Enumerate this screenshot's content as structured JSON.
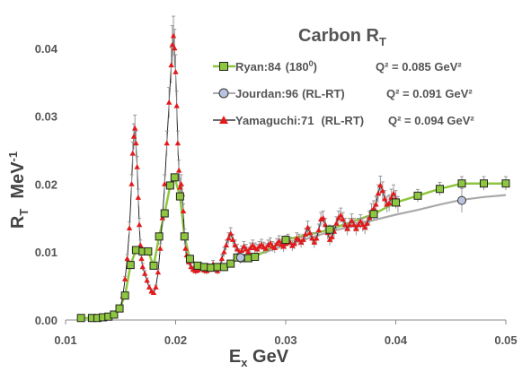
{
  "chart_data": {
    "type": "line",
    "title": "Carbon R",
    "title_sub": "T",
    "xlabel": "E",
    "xlabel_sub": "x",
    "xlabel_unit": "GeV",
    "ylabel": "R",
    "ylabel_sub": "T",
    "ylabel_unit": "MeV",
    "ylabel_sup": "-1",
    "xlim": [
      0.01,
      0.05
    ],
    "ylim": [
      0,
      0.045
    ],
    "x_ticks": [
      "0.01",
      "0.02",
      "0.03",
      "0.04",
      "0.05"
    ],
    "y_ticks": [
      "0.00",
      "0.01",
      "0.02",
      "0.03",
      "0.04"
    ],
    "grid": false,
    "legend_position": "top-right",
    "colors": {
      "ryan_fill": "#8ec63f",
      "ryan_line": "#8ec63f",
      "jourdan_fill": "#b8c4e0",
      "jourdan_line": "#aaaaaa",
      "yamaguchi_fill": "#e31a1c",
      "yamaguchi_line": "#111111",
      "errorbar": "#999999"
    },
    "series": [
      {
        "name": "Ryan:84",
        "name_note": "(180",
        "name_note_sup": "0",
        "name_note_end": ")",
        "q2": "Q² = 0.085 GeV²",
        "marker": "square",
        "points": [
          [
            0.0114,
            0.0003
          ],
          [
            0.0124,
            0.0003
          ],
          [
            0.0129,
            0.0003
          ],
          [
            0.0134,
            0.0004
          ],
          [
            0.0139,
            0.0005
          ],
          [
            0.0144,
            0.0008
          ],
          [
            0.0149,
            0.0017
          ],
          [
            0.0154,
            0.0036
          ],
          [
            0.0159,
            0.0081
          ],
          [
            0.0164,
            0.0103
          ],
          [
            0.017,
            0.0101
          ],
          [
            0.0175,
            0.0101
          ],
          [
            0.018,
            0.008
          ],
          [
            0.0185,
            0.0123
          ],
          [
            0.019,
            0.0157
          ],
          [
            0.0195,
            0.0198
          ],
          [
            0.0199,
            0.021
          ],
          [
            0.0204,
            0.0182
          ],
          [
            0.0208,
            0.0123
          ],
          [
            0.0213,
            0.009
          ],
          [
            0.022,
            0.008
          ],
          [
            0.0226,
            0.0078
          ],
          [
            0.0232,
            0.0077
          ],
          [
            0.0238,
            0.0078
          ],
          [
            0.0244,
            0.0078
          ],
          [
            0.025,
            0.0083
          ],
          [
            0.0256,
            0.0092
          ],
          [
            0.0261,
            0.0091
          ],
          [
            0.0266,
            0.0091
          ],
          [
            0.0272,
            0.0093
          ],
          [
            0.03,
            0.0118
          ],
          [
            0.034,
            0.0133
          ],
          [
            0.038,
            0.0156
          ],
          [
            0.04,
            0.0173
          ],
          [
            0.042,
            0.0183
          ],
          [
            0.044,
            0.0193
          ],
          [
            0.046,
            0.0201
          ],
          [
            0.048,
            0.0201
          ],
          [
            0.05,
            0.0201
          ]
        ]
      },
      {
        "name": "Jourdan:96",
        "name_note": "(RL-RT)",
        "q2": "Q² = 0.091 GeV²",
        "marker": "circle",
        "points": [
          [
            0.0259,
            0.0092
          ],
          [
            0.046,
            0.0176
          ]
        ],
        "curve": [
          [
            0.0255,
            0.009
          ],
          [
            0.028,
            0.0099
          ],
          [
            0.03,
            0.011
          ],
          [
            0.032,
            0.012
          ],
          [
            0.034,
            0.013
          ],
          [
            0.036,
            0.0138
          ],
          [
            0.038,
            0.0147
          ],
          [
            0.04,
            0.0155
          ],
          [
            0.042,
            0.0162
          ],
          [
            0.044,
            0.017
          ],
          [
            0.046,
            0.0177
          ],
          [
            0.048,
            0.0181
          ],
          [
            0.05,
            0.0184
          ]
        ]
      },
      {
        "name": "Yamaguchi:71",
        "name_note": "(RL-RT)",
        "q2": "Q² = 0.094 GeV²",
        "marker": "triangle",
        "points": [
          [
            0.015,
            0.0015
          ],
          [
            0.0152,
            0.0035
          ],
          [
            0.0154,
            0.006
          ],
          [
            0.0156,
            0.009
          ],
          [
            0.0158,
            0.0135
          ],
          [
            0.016,
            0.02
          ],
          [
            0.0161,
            0.0245
          ],
          [
            0.0162,
            0.027
          ],
          [
            0.0163,
            0.0282
          ],
          [
            0.0164,
            0.026
          ],
          [
            0.0165,
            0.0225
          ],
          [
            0.0166,
            0.018
          ],
          [
            0.0167,
            0.014
          ],
          [
            0.0168,
            0.011
          ],
          [
            0.0169,
            0.009
          ],
          [
            0.017,
            0.0078
          ],
          [
            0.0172,
            0.0068
          ],
          [
            0.0174,
            0.0058
          ],
          [
            0.0176,
            0.0048
          ],
          [
            0.0178,
            0.0042
          ],
          [
            0.018,
            0.004
          ],
          [
            0.0182,
            0.0048
          ],
          [
            0.0184,
            0.007
          ],
          [
            0.0186,
            0.0105
          ],
          [
            0.0188,
            0.015
          ],
          [
            0.019,
            0.02
          ],
          [
            0.0192,
            0.026
          ],
          [
            0.0194,
            0.032
          ],
          [
            0.0196,
            0.0375
          ],
          [
            0.0197,
            0.0405
          ],
          [
            0.0198,
            0.0418
          ],
          [
            0.0199,
            0.04
          ],
          [
            0.02,
            0.0365
          ],
          [
            0.0201,
            0.0315
          ],
          [
            0.0202,
            0.026
          ],
          [
            0.0203,
            0.022
          ],
          [
            0.0204,
            0.0195
          ],
          [
            0.0205,
            0.02
          ],
          [
            0.0206,
            0.0185
          ],
          [
            0.0207,
            0.016
          ],
          [
            0.0208,
            0.0125
          ],
          [
            0.0209,
            0.0105
          ],
          [
            0.021,
            0.0095
          ],
          [
            0.0212,
            0.0085
          ],
          [
            0.0214,
            0.0078
          ],
          [
            0.0216,
            0.0074
          ],
          [
            0.0218,
            0.0072
          ],
          [
            0.022,
            0.0073
          ],
          [
            0.0222,
            0.0076
          ],
          [
            0.0224,
            0.0075
          ],
          [
            0.0226,
            0.0073
          ],
          [
            0.0228,
            0.0072
          ],
          [
            0.023,
            0.0074
          ],
          [
            0.0232,
            0.0077
          ],
          [
            0.0234,
            0.0082
          ],
          [
            0.0236,
            0.0075
          ],
          [
            0.0238,
            0.0072
          ],
          [
            0.024,
            0.0078
          ],
          [
            0.0242,
            0.009
          ],
          [
            0.0244,
            0.01
          ],
          [
            0.0246,
            0.011
          ],
          [
            0.0248,
            0.012
          ],
          [
            0.025,
            0.0127
          ],
          [
            0.0252,
            0.0118
          ],
          [
            0.0254,
            0.011
          ],
          [
            0.0256,
            0.0104
          ],
          [
            0.0258,
            0.0098
          ],
          [
            0.026,
            0.0102
          ],
          [
            0.0262,
            0.0108
          ],
          [
            0.0264,
            0.0104
          ],
          [
            0.0266,
            0.01
          ],
          [
            0.0268,
            0.0106
          ],
          [
            0.027,
            0.011
          ],
          [
            0.0272,
            0.0106
          ],
          [
            0.0274,
            0.0104
          ],
          [
            0.0276,
            0.0108
          ],
          [
            0.0278,
            0.0111
          ],
          [
            0.028,
            0.0107
          ],
          [
            0.0282,
            0.0105
          ],
          [
            0.0284,
            0.011
          ],
          [
            0.0286,
            0.0113
          ],
          [
            0.0288,
            0.0108
          ],
          [
            0.029,
            0.0106
          ],
          [
            0.0292,
            0.0112
          ],
          [
            0.0294,
            0.0116
          ],
          [
            0.0296,
            0.0111
          ],
          [
            0.0298,
            0.0108
          ],
          [
            0.03,
            0.0112
          ],
          [
            0.0302,
            0.0118
          ],
          [
            0.0304,
            0.0114
          ],
          [
            0.0306,
            0.0109
          ],
          [
            0.0308,
            0.0112
          ],
          [
            0.031,
            0.012
          ],
          [
            0.0312,
            0.0118
          ],
          [
            0.0314,
            0.0114
          ],
          [
            0.0316,
            0.0118
          ],
          [
            0.0318,
            0.0126
          ],
          [
            0.032,
            0.0136
          ],
          [
            0.0322,
            0.0128
          ],
          [
            0.0324,
            0.012
          ],
          [
            0.0326,
            0.0114
          ],
          [
            0.0328,
            0.012
          ],
          [
            0.033,
            0.0132
          ],
          [
            0.0332,
            0.0148
          ],
          [
            0.0334,
            0.015
          ],
          [
            0.0336,
            0.014
          ],
          [
            0.0338,
            0.0128
          ],
          [
            0.034,
            0.0118
          ],
          [
            0.0342,
            0.0122
          ],
          [
            0.0344,
            0.013
          ],
          [
            0.0346,
            0.0142
          ],
          [
            0.0348,
            0.015
          ],
          [
            0.035,
            0.0154
          ],
          [
            0.0352,
            0.0148
          ],
          [
            0.0354,
            0.014
          ],
          [
            0.0356,
            0.0134
          ],
          [
            0.0358,
            0.014
          ],
          [
            0.036,
            0.0146
          ],
          [
            0.0362,
            0.014
          ],
          [
            0.0364,
            0.0134
          ],
          [
            0.0366,
            0.014
          ],
          [
            0.0368,
            0.0145
          ],
          [
            0.037,
            0.014
          ],
          [
            0.0372,
            0.0136
          ],
          [
            0.0374,
            0.0142
          ],
          [
            0.0376,
            0.015
          ],
          [
            0.0378,
            0.016
          ],
          [
            0.038,
            0.0164
          ],
          [
            0.0382,
            0.017
          ],
          [
            0.0384,
            0.0186
          ],
          [
            0.0386,
            0.0198
          ],
          [
            0.0388,
            0.019
          ],
          [
            0.039,
            0.0178
          ],
          [
            0.0392,
            0.017
          ],
          [
            0.0394,
            0.0172
          ],
          [
            0.0396,
            0.018
          ],
          [
            0.0398,
            0.0186
          ],
          [
            0.04,
            0.0178
          ],
          [
            0.0402,
            0.017
          ]
        ]
      }
    ]
  }
}
